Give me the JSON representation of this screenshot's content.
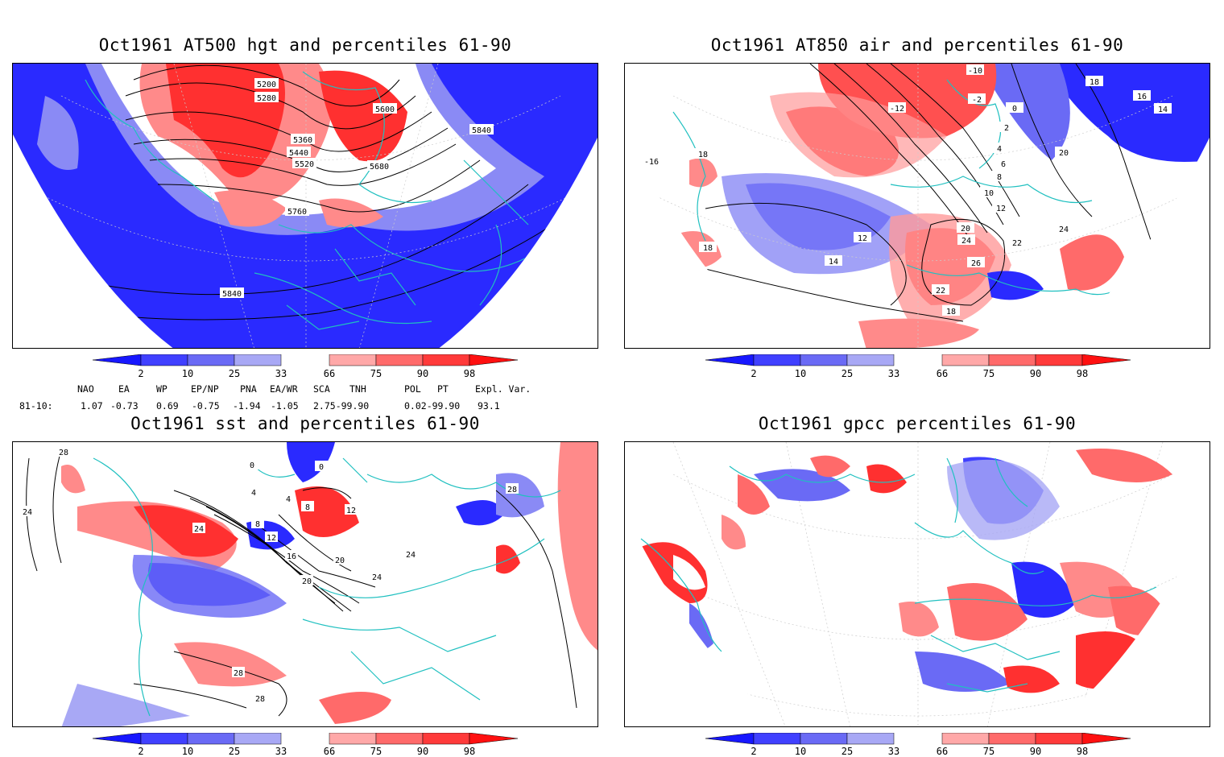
{
  "panels": [
    {
      "id": "hgt",
      "title": "Oct1961 AT500 hgt and percentiles 61-90",
      "contour_labels": [
        "5200",
        "5280",
        "5360",
        "5440",
        "5520",
        "5600",
        "5680",
        "5760",
        "5840",
        "5840",
        "5840"
      ]
    },
    {
      "id": "air",
      "title": "Oct1961 AT850 air and percentiles 61-90",
      "contour_labels": [
        "-10",
        "-12",
        "-2",
        "0",
        "2",
        "4",
        "6",
        "8",
        "10",
        "12",
        "12",
        "14",
        "14",
        "16",
        "18",
        "18",
        "18",
        "18",
        "20",
        "20",
        "22",
        "22",
        "24",
        "24",
        "26",
        "-16"
      ]
    },
    {
      "id": "sst",
      "title": "Oct1961 sst and percentiles 61-90",
      "contour_labels": [
        "28",
        "24",
        "0",
        "0",
        "4",
        "4",
        "8",
        "8",
        "12",
        "12",
        "16",
        "20",
        "20",
        "24",
        "24",
        "24",
        "28",
        "28",
        "28"
      ]
    },
    {
      "id": "gpcc",
      "title": "Oct1961 gpcc percentiles 61-90",
      "contour_labels": []
    }
  ],
  "colorbar": {
    "labels": [
      "2",
      "10",
      "25",
      "33",
      "66",
      "75",
      "90",
      "98"
    ],
    "colors": [
      "#1717ff",
      "#4040ff",
      "#6a6af5",
      "#a8a8f5",
      "#ffffff",
      "#ffa8a8",
      "#ff6a6a",
      "#ff3a3a",
      "#ff1010"
    ]
  },
  "indices": {
    "row_label": "81-10:",
    "headers": [
      "NAO",
      "EA",
      "WP",
      "EP/NP",
      "PNA",
      "EA/WR",
      "SCA",
      "TNH",
      "POL",
      "PT",
      "Expl. Var."
    ],
    "values": [
      "1.07",
      "-0.73",
      "0.69",
      "-0.75",
      "-1.94",
      "-1.05",
      "2.75-99.90",
      "0.02-99.90",
      "93.1"
    ]
  },
  "colors": {
    "land_outline": "#20c0c0",
    "blue": "#2a2aff",
    "red": "#ff3030"
  }
}
